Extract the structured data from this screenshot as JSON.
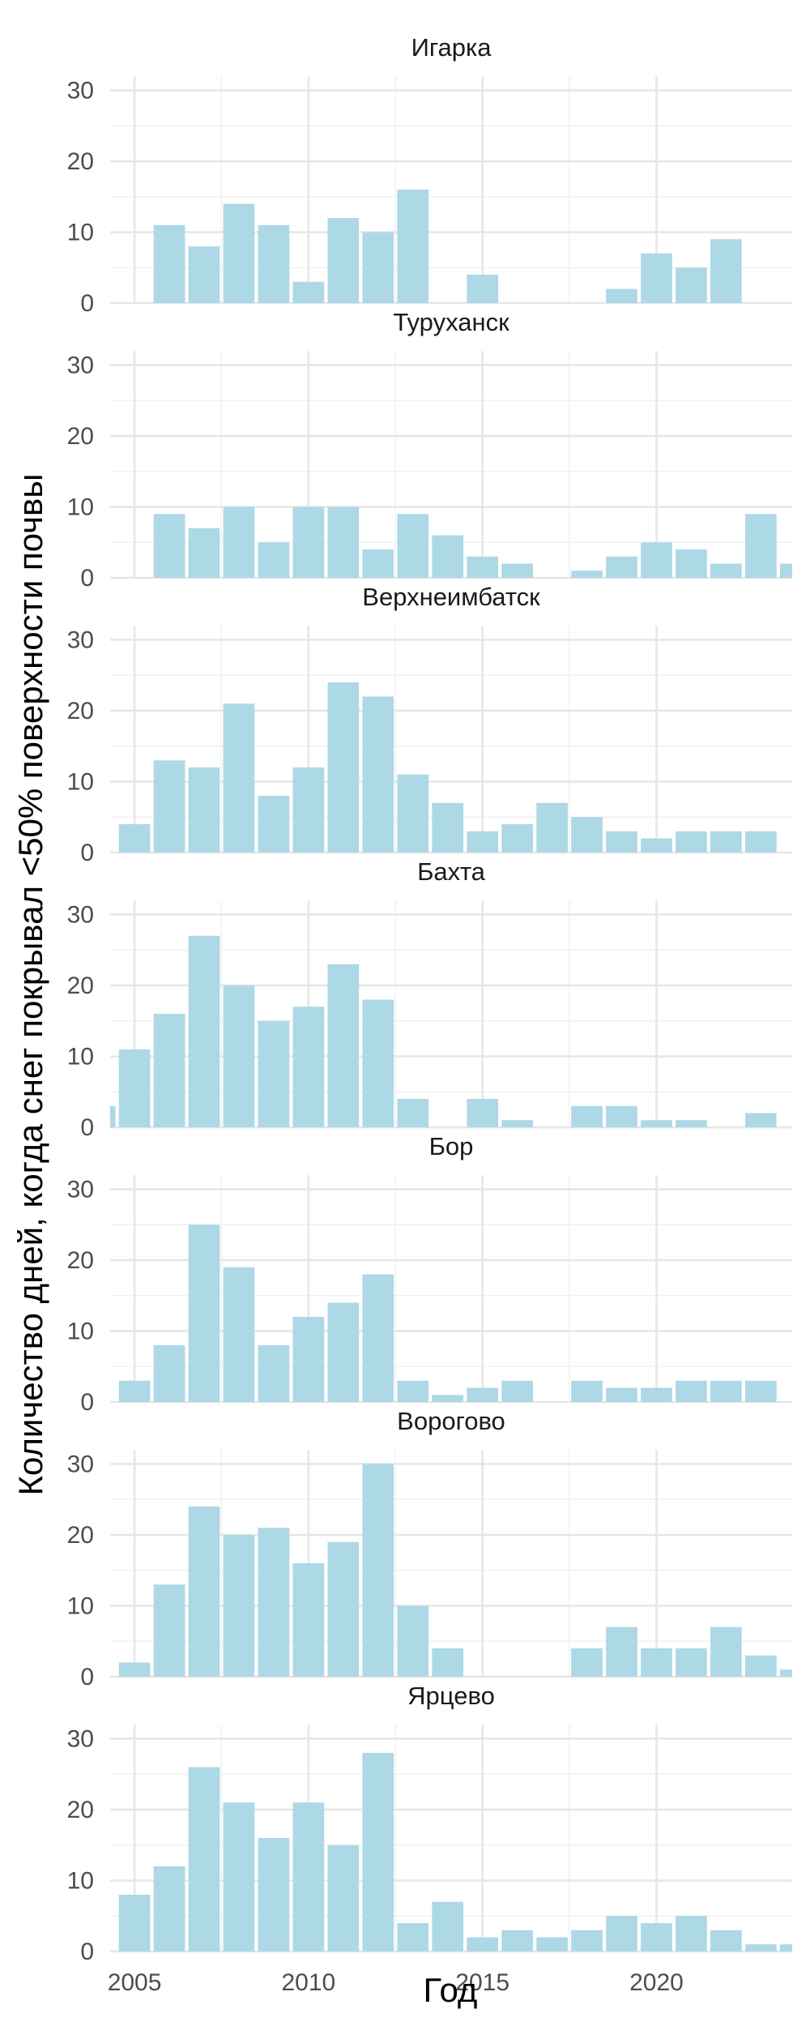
{
  "chart_data": {
    "type": "bar",
    "xlabel": "Год",
    "ylabel": "Количество дней, когда снег покрывал <50% поверхности почвы",
    "x_ticks": [
      2005,
      2010,
      2015,
      2020
    ],
    "y_ticks": [
      0,
      10,
      20,
      30
    ],
    "xlim": [
      2004.3,
      2023.9
    ],
    "ylim": [
      0,
      32
    ],
    "bar_color": "#add8e6",
    "grid": true,
    "facets": [
      {
        "title": "Игарка",
        "bars": [
          {
            "year": 2006,
            "value": 11
          },
          {
            "year": 2007,
            "value": 8
          },
          {
            "year": 2008,
            "value": 14
          },
          {
            "year": 2009,
            "value": 11
          },
          {
            "year": 2010,
            "value": 3
          },
          {
            "year": 2011,
            "value": 12
          },
          {
            "year": 2012,
            "value": 10
          },
          {
            "year": 2013,
            "value": 16
          },
          {
            "year": 2015,
            "value": 4
          },
          {
            "year": 2019,
            "value": 2
          },
          {
            "year": 2020,
            "value": 7
          },
          {
            "year": 2021,
            "value": 5
          },
          {
            "year": 2022,
            "value": 9
          }
        ]
      },
      {
        "title": "Туруханск",
        "bars": [
          {
            "year": 2006,
            "value": 9
          },
          {
            "year": 2007,
            "value": 7
          },
          {
            "year": 2008,
            "value": 10
          },
          {
            "year": 2009,
            "value": 5
          },
          {
            "year": 2010,
            "value": 10
          },
          {
            "year": 2011,
            "value": 10
          },
          {
            "year": 2012,
            "value": 4
          },
          {
            "year": 2013,
            "value": 9
          },
          {
            "year": 2014,
            "value": 6
          },
          {
            "year": 2015,
            "value": 3
          },
          {
            "year": 2016,
            "value": 2
          },
          {
            "year": 2018,
            "value": 1
          },
          {
            "year": 2019,
            "value": 3
          },
          {
            "year": 2020,
            "value": 5
          },
          {
            "year": 2021,
            "value": 4
          },
          {
            "year": 2022,
            "value": 2
          },
          {
            "year": 2023,
            "value": 9
          },
          {
            "year": 2024,
            "value": 2
          }
        ]
      },
      {
        "title": "Верхнеимбатск",
        "bars": [
          {
            "year": 2005,
            "value": 4
          },
          {
            "year": 2006,
            "value": 13
          },
          {
            "year": 2007,
            "value": 12
          },
          {
            "year": 2008,
            "value": 21
          },
          {
            "year": 2009,
            "value": 8
          },
          {
            "year": 2010,
            "value": 12
          },
          {
            "year": 2011,
            "value": 24
          },
          {
            "year": 2012,
            "value": 22
          },
          {
            "year": 2013,
            "value": 11
          },
          {
            "year": 2014,
            "value": 7
          },
          {
            "year": 2015,
            "value": 3
          },
          {
            "year": 2016,
            "value": 4
          },
          {
            "year": 2017,
            "value": 7
          },
          {
            "year": 2018,
            "value": 5
          },
          {
            "year": 2019,
            "value": 3
          },
          {
            "year": 2020,
            "value": 2
          },
          {
            "year": 2021,
            "value": 3
          },
          {
            "year": 2022,
            "value": 3
          },
          {
            "year": 2023,
            "value": 3
          }
        ]
      },
      {
        "title": "Бахта",
        "bars": [
          {
            "year": 2004,
            "value": 3
          },
          {
            "year": 2005,
            "value": 11
          },
          {
            "year": 2006,
            "value": 16
          },
          {
            "year": 2007,
            "value": 27
          },
          {
            "year": 2008,
            "value": 20
          },
          {
            "year": 2009,
            "value": 15
          },
          {
            "year": 2010,
            "value": 17
          },
          {
            "year": 2011,
            "value": 23
          },
          {
            "year": 2012,
            "value": 18
          },
          {
            "year": 2013,
            "value": 4
          },
          {
            "year": 2015,
            "value": 4
          },
          {
            "year": 2016,
            "value": 1
          },
          {
            "year": 2018,
            "value": 3
          },
          {
            "year": 2019,
            "value": 3
          },
          {
            "year": 2020,
            "value": 1
          },
          {
            "year": 2021,
            "value": 1
          },
          {
            "year": 2023,
            "value": 2
          }
        ]
      },
      {
        "title": "Бор",
        "bars": [
          {
            "year": 2005,
            "value": 3
          },
          {
            "year": 2006,
            "value": 8
          },
          {
            "year": 2007,
            "value": 25
          },
          {
            "year": 2008,
            "value": 19
          },
          {
            "year": 2009,
            "value": 8
          },
          {
            "year": 2010,
            "value": 12
          },
          {
            "year": 2011,
            "value": 14
          },
          {
            "year": 2012,
            "value": 18
          },
          {
            "year": 2013,
            "value": 3
          },
          {
            "year": 2014,
            "value": 1
          },
          {
            "year": 2015,
            "value": 2
          },
          {
            "year": 2016,
            "value": 3
          },
          {
            "year": 2018,
            "value": 3
          },
          {
            "year": 2019,
            "value": 2
          },
          {
            "year": 2020,
            "value": 2
          },
          {
            "year": 2021,
            "value": 3
          },
          {
            "year": 2022,
            "value": 3
          },
          {
            "year": 2023,
            "value": 3
          }
        ]
      },
      {
        "title": "Ворогово",
        "bars": [
          {
            "year": 2005,
            "value": 2
          },
          {
            "year": 2006,
            "value": 13
          },
          {
            "year": 2007,
            "value": 24
          },
          {
            "year": 2008,
            "value": 20
          },
          {
            "year": 2009,
            "value": 21
          },
          {
            "year": 2010,
            "value": 16
          },
          {
            "year": 2011,
            "value": 19
          },
          {
            "year": 2012,
            "value": 30
          },
          {
            "year": 2013,
            "value": 10
          },
          {
            "year": 2014,
            "value": 4
          },
          {
            "year": 2018,
            "value": 4
          },
          {
            "year": 2019,
            "value": 7
          },
          {
            "year": 2020,
            "value": 4
          },
          {
            "year": 2021,
            "value": 4
          },
          {
            "year": 2022,
            "value": 7
          },
          {
            "year": 2023,
            "value": 3
          },
          {
            "year": 2024,
            "value": 1
          }
        ]
      },
      {
        "title": "Ярцево",
        "bars": [
          {
            "year": 2005,
            "value": 8
          },
          {
            "year": 2006,
            "value": 12
          },
          {
            "year": 2007,
            "value": 26
          },
          {
            "year": 2008,
            "value": 21
          },
          {
            "year": 2009,
            "value": 16
          },
          {
            "year": 2010,
            "value": 21
          },
          {
            "year": 2011,
            "value": 15
          },
          {
            "year": 2012,
            "value": 28
          },
          {
            "year": 2013,
            "value": 4
          },
          {
            "year": 2014,
            "value": 7
          },
          {
            "year": 2015,
            "value": 2
          },
          {
            "year": 2016,
            "value": 3
          },
          {
            "year": 2017,
            "value": 2
          },
          {
            "year": 2018,
            "value": 3
          },
          {
            "year": 2019,
            "value": 5
          },
          {
            "year": 2020,
            "value": 4
          },
          {
            "year": 2021,
            "value": 5
          },
          {
            "year": 2022,
            "value": 3
          },
          {
            "year": 2023,
            "value": 1
          },
          {
            "year": 2024,
            "value": 1
          }
        ]
      }
    ]
  }
}
